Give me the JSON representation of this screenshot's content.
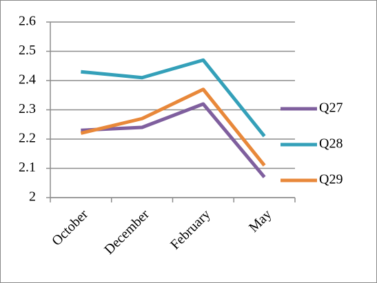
{
  "chart_data": {
    "type": "line",
    "categories": [
      "October",
      "December",
      "February",
      "May"
    ],
    "series": [
      {
        "name": "Q27",
        "color": "#7f5f9e",
        "values": [
          2.23,
          2.24,
          2.32,
          2.07
        ]
      },
      {
        "name": "Q28",
        "color": "#34a0b9",
        "values": [
          2.43,
          2.41,
          2.47,
          2.21
        ]
      },
      {
        "name": "Q29",
        "color": "#e8883a",
        "values": [
          2.22,
          2.27,
          2.37,
          2.11
        ]
      }
    ],
    "ylim": [
      2,
      2.6
    ],
    "yticks": [
      2,
      2.1,
      2.2,
      2.3,
      2.4,
      2.5,
      2.6
    ],
    "grid": true,
    "legend": "right"
  }
}
